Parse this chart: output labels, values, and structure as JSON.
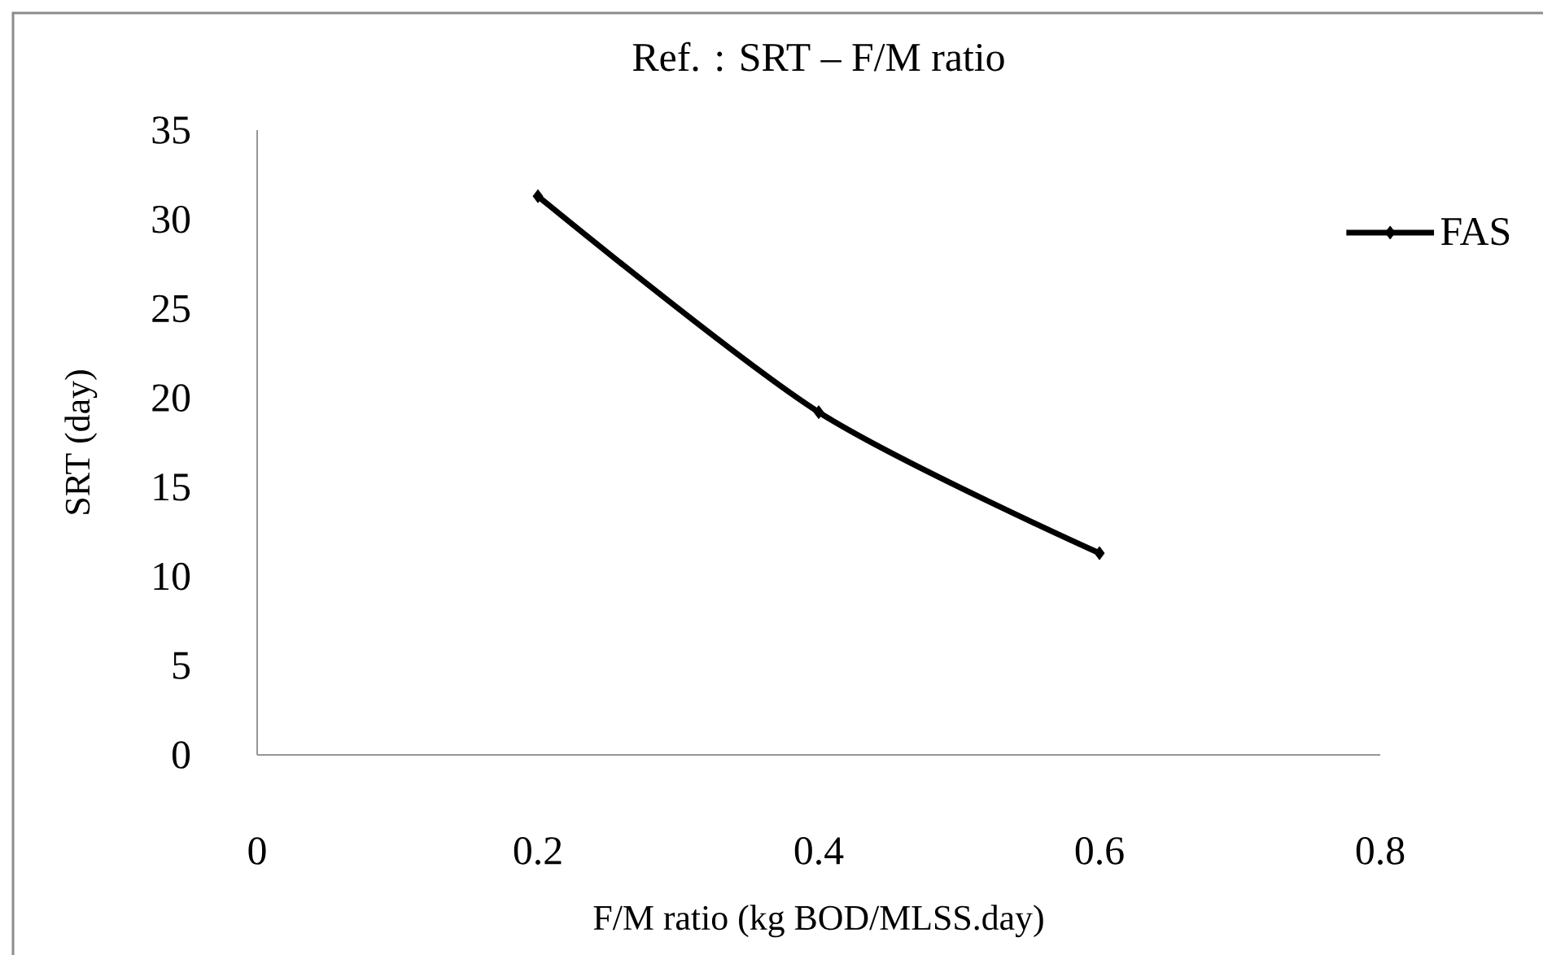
{
  "chart_data": {
    "type": "line",
    "title": "Ref. : SRT – F/M ratio",
    "xlabel": "F/M ratio (kg BOD/MLSS.day)",
    "ylabel": "SRT (day)",
    "x": [
      0.2,
      0.4,
      0.6
    ],
    "series": [
      {
        "name": "FAS",
        "color": "#000000",
        "values": [
          31.3,
          19.2,
          11.3
        ]
      }
    ],
    "xlim": [
      0,
      0.8
    ],
    "xticks": [
      0,
      0.2,
      0.4,
      0.6,
      0.8
    ],
    "ylim": [
      0,
      35
    ],
    "yticks": [
      0,
      5,
      10,
      15,
      20,
      25,
      30,
      35
    ],
    "legend": "right",
    "marker": "diamond",
    "line_style": "solid"
  }
}
